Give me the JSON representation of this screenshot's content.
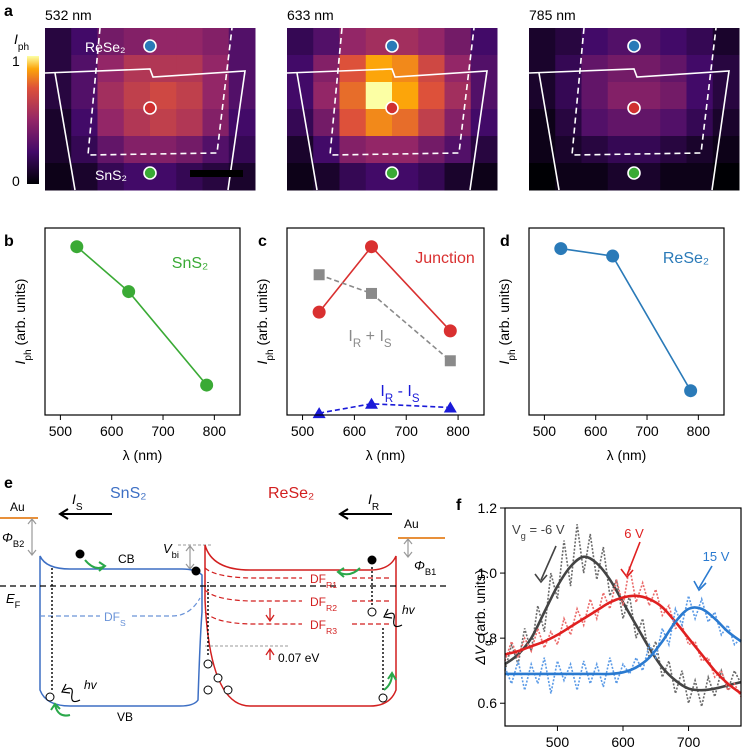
{
  "heatmaps": {
    "panel": "a",
    "colorbar": {
      "label": [
        "I",
        "ph"
      ],
      "max": 1,
      "min": 0
    },
    "labels": {
      "top": "ReSe₂",
      "bottom": "SnS₂"
    },
    "maps": [
      {
        "title": "532 nm",
        "intensity": [
          [
            0.15,
            0.25,
            0.4,
            0.45,
            0.5,
            0.5,
            0.45,
            0.3
          ],
          [
            0.15,
            0.3,
            0.5,
            0.6,
            0.6,
            0.6,
            0.5,
            0.3
          ],
          [
            0.15,
            0.3,
            0.55,
            0.65,
            0.7,
            0.65,
            0.5,
            0.3
          ],
          [
            0.1,
            0.25,
            0.5,
            0.6,
            0.65,
            0.6,
            0.45,
            0.25
          ],
          [
            0.1,
            0.2,
            0.35,
            0.45,
            0.45,
            0.4,
            0.3,
            0.2
          ],
          [
            0.05,
            0.1,
            0.2,
            0.25,
            0.25,
            0.2,
            0.15,
            0.1
          ]
        ]
      },
      {
        "title": "633 nm",
        "intensity": [
          [
            0.2,
            0.3,
            0.5,
            0.55,
            0.55,
            0.5,
            0.4,
            0.25
          ],
          [
            0.25,
            0.45,
            0.75,
            0.9,
            0.85,
            0.7,
            0.5,
            0.3
          ],
          [
            0.25,
            0.5,
            0.8,
            1,
            0.9,
            0.75,
            0.55,
            0.3
          ],
          [
            0.2,
            0.4,
            0.75,
            0.85,
            0.8,
            0.65,
            0.45,
            0.25
          ],
          [
            0.1,
            0.25,
            0.45,
            0.5,
            0.5,
            0.4,
            0.3,
            0.15
          ],
          [
            0.05,
            0.1,
            0.2,
            0.25,
            0.25,
            0.2,
            0.1,
            0.05
          ]
        ]
      },
      {
        "title": "785 nm",
        "intensity": [
          [
            0.1,
            0.15,
            0.25,
            0.3,
            0.3,
            0.25,
            0.2,
            0.1
          ],
          [
            0.1,
            0.2,
            0.35,
            0.4,
            0.4,
            0.35,
            0.25,
            0.15
          ],
          [
            0.1,
            0.2,
            0.35,
            0.45,
            0.45,
            0.4,
            0.25,
            0.15
          ],
          [
            0.05,
            0.15,
            0.3,
            0.35,
            0.35,
            0.3,
            0.2,
            0.1
          ],
          [
            0.05,
            0.1,
            0.15,
            0.2,
            0.2,
            0.15,
            0.1,
            0.05
          ],
          [
            0,
            0.05,
            0.05,
            0.1,
            0.1,
            0.05,
            0.05,
            0
          ]
        ]
      }
    ]
  },
  "chart_data": [
    {
      "type": "line",
      "panel": "b",
      "x": [
        532,
        633,
        785
      ],
      "xlim": [
        470,
        850
      ],
      "xticks": [
        500,
        600,
        700,
        800
      ],
      "ylim": [
        0,
        1
      ],
      "xlabel": "λ (nm)",
      "ylabel": [
        "I",
        "ph",
        " (arb. units)"
      ],
      "smooth": false,
      "series": [
        {
          "name": "SnS₂",
          "color": "#3aaa35",
          "marker": "circle",
          "dashed": false,
          "values": [
            0.9,
            0.66,
            0.16
          ]
        }
      ]
    },
    {
      "type": "line",
      "panel": "c",
      "x": [
        532,
        633,
        785
      ],
      "xlim": [
        470,
        850
      ],
      "xticks": [
        500,
        600,
        700,
        800
      ],
      "ylim": [
        0,
        1
      ],
      "xlabel": "λ (nm)",
      "ylabel": [
        "I",
        "ph",
        " (arb. units)"
      ],
      "smooth": false,
      "series": [
        {
          "name": "Junction",
          "color": "#d93030",
          "marker": "circle",
          "dashed": false,
          "values": [
            0.55,
            0.9,
            0.45
          ]
        },
        {
          "name": [
            "I",
            "R",
            " + I",
            "S"
          ],
          "color": "#8a8a8a",
          "marker": "square",
          "dashed": true,
          "values": [
            0.75,
            0.65,
            0.29
          ]
        },
        {
          "name": [
            "I",
            "R",
            " - I",
            "S"
          ],
          "color": "#1a1ad8",
          "marker": "triangle",
          "dashed": true,
          "values": [
            0.01,
            0.06,
            0.04
          ]
        }
      ]
    },
    {
      "type": "line",
      "panel": "d",
      "x": [
        532,
        633,
        785
      ],
      "xlim": [
        470,
        850
      ],
      "xticks": [
        500,
        600,
        700,
        800
      ],
      "ylim": [
        0,
        1
      ],
      "xlabel": "λ (nm)",
      "ylabel": [
        "I",
        "ph",
        " (arb. units)"
      ],
      "smooth": false,
      "series": [
        {
          "name": "ReSe₂",
          "color": "#2a7ab8",
          "marker": "circle",
          "dashed": false,
          "values": [
            0.89,
            0.85,
            0.13
          ]
        }
      ]
    },
    {
      "type": "line",
      "panel": "f",
      "x": [
        420,
        440,
        460,
        480,
        500,
        520,
        540,
        560,
        580,
        600,
        620,
        640,
        660,
        680,
        700,
        720,
        740,
        760,
        780
      ],
      "x_measured": [
        420,
        430,
        440,
        450,
        460,
        470,
        480,
        490,
        500,
        510,
        520,
        530,
        540,
        550,
        560,
        570,
        580,
        590,
        600,
        610,
        620,
        630,
        640,
        650,
        660,
        670,
        680,
        690,
        700,
        710,
        720,
        730,
        740,
        750,
        760,
        770,
        780
      ],
      "xlim": [
        420,
        780
      ],
      "xticks": [
        500,
        600,
        700
      ],
      "ylim": [
        0.53,
        1.2
      ],
      "yticks": [
        0.6,
        0.8,
        {
          "value": 1,
          "label": "1.0"
        },
        1.2
      ],
      "xlabel": "λ (nm)",
      "ylabel": [
        "ΔV",
        "g",
        " (arb. units)"
      ],
      "smooth": true,
      "series": [
        {
          "name": [
            "V",
            "g",
            " = -6 V"
          ],
          "color": "#444444",
          "measured_color": "#6a6a6a",
          "marker": "none",
          "dashed": false,
          "values": [
            0.72,
            0.75,
            0.8,
            0.88,
            0.96,
            1.02,
            1.05,
            1.03,
            0.98,
            0.91,
            0.84,
            0.77,
            0.71,
            0.67,
            0.645,
            0.64,
            0.645,
            0.655,
            0.665
          ],
          "measured_values": [
            0.7,
            0.78,
            0.72,
            0.83,
            0.76,
            0.9,
            0.82,
            1.0,
            0.92,
            1.1,
            0.96,
            1.15,
            1.0,
            1.12,
            0.98,
            1.08,
            0.93,
            0.98,
            0.86,
            0.93,
            0.8,
            0.86,
            0.74,
            0.79,
            0.68,
            0.73,
            0.63,
            0.7,
            0.6,
            0.67,
            0.59,
            0.68,
            0.62,
            0.7,
            0.64,
            0.7,
            0.66
          ]
        },
        {
          "name": "6 V",
          "color": "#e02020",
          "measured_color": "#ea6a6a",
          "marker": "none",
          "dashed": false,
          "values": [
            0.75,
            0.76,
            0.775,
            0.79,
            0.81,
            0.835,
            0.86,
            0.885,
            0.91,
            0.925,
            0.93,
            0.92,
            0.895,
            0.85,
            0.8,
            0.75,
            0.7,
            0.66,
            0.63
          ],
          "measured_values": [
            0.73,
            0.79,
            0.74,
            0.8,
            0.76,
            0.83,
            0.77,
            0.82,
            0.78,
            0.86,
            0.81,
            0.89,
            0.84,
            0.92,
            0.86,
            0.94,
            0.89,
            0.98,
            0.9,
            1.02,
            0.91,
            0.97,
            0.9,
            0.95,
            0.87,
            0.9,
            0.83,
            0.84,
            0.78,
            0.79,
            0.73,
            0.74,
            0.68,
            0.7,
            0.64,
            0.66,
            0.62
          ]
        },
        {
          "name": "15 V",
          "color": "#2a7ad0",
          "measured_color": "#5a9ae6",
          "marker": "none",
          "dashed": false,
          "values": [
            0.69,
            0.69,
            0.69,
            0.69,
            0.69,
            0.69,
            0.69,
            0.69,
            0.69,
            0.695,
            0.71,
            0.74,
            0.79,
            0.85,
            0.89,
            0.89,
            0.86,
            0.82,
            0.79
          ],
          "measured_values": [
            0.71,
            0.66,
            0.73,
            0.64,
            0.72,
            0.66,
            0.74,
            0.63,
            0.73,
            0.67,
            0.72,
            0.64,
            0.73,
            0.66,
            0.72,
            0.65,
            0.74,
            0.66,
            0.72,
            0.69,
            0.74,
            0.7,
            0.78,
            0.74,
            0.83,
            0.78,
            0.89,
            0.84,
            0.93,
            0.86,
            0.92,
            0.85,
            0.88,
            0.81,
            0.84,
            0.78,
            0.8
          ]
        }
      ]
    }
  ],
  "band_diagram": {
    "panel": "e",
    "left_material": "SnS₂",
    "right_material": "ReSe₂",
    "current_left": [
      "I",
      "S"
    ],
    "current_right": [
      "I",
      "R"
    ],
    "metal_left": "Au",
    "metal_right": "Au",
    "barrier_left": [
      "Φ",
      "B2"
    ],
    "barrier_right": [
      "Φ",
      "B1"
    ],
    "built_in": [
      "V",
      "bi"
    ],
    "fermi": [
      "E",
      "F"
    ],
    "conduction_band": "CB",
    "valence_band": "VB",
    "df_r1": [
      "DF",
      "R1"
    ],
    "df_r2": [
      "DF",
      "R2"
    ],
    "df_r3": [
      "DF",
      "R3"
    ],
    "df_s": [
      "DF",
      "S"
    ],
    "photon_left": "hv",
    "photon_right": "hv",
    "offset": "0.07 eV"
  }
}
